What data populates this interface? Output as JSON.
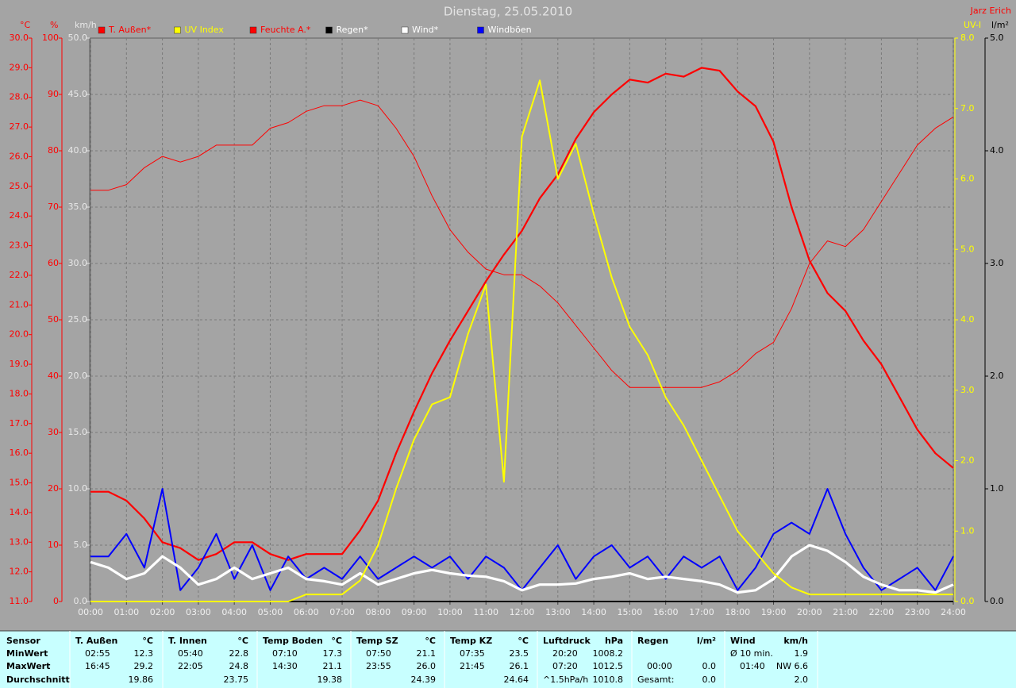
{
  "chart_data": {
    "type": "line",
    "title": "Dienstag, 25.05.2010",
    "author": "Jarz Erich",
    "grid": true,
    "x": [
      0,
      0.5,
      1,
      1.5,
      2,
      2.5,
      3,
      3.5,
      4,
      4.5,
      5,
      5.5,
      6,
      6.5,
      7,
      7.5,
      8,
      8.5,
      9,
      9.5,
      10,
      10.5,
      11,
      11.5,
      12,
      12.5,
      13,
      13.5,
      14,
      14.5,
      15,
      15.5,
      16,
      16.5,
      17,
      17.5,
      18,
      18.5,
      19,
      19.5,
      20,
      20.5,
      21,
      21.5,
      22,
      22.5,
      23,
      23.5,
      24
    ],
    "xlim": [
      0,
      24
    ],
    "xticks": [
      {
        "value": 0,
        "label": "00:00"
      },
      {
        "value": 1,
        "label": "01:00"
      },
      {
        "value": 2,
        "label": "02:00"
      },
      {
        "value": 3,
        "label": "03:00"
      },
      {
        "value": 4,
        "label": "04:00"
      },
      {
        "value": 5,
        "label": "05:00"
      },
      {
        "value": 6,
        "label": "06:00"
      },
      {
        "value": 7,
        "label": "07:00"
      },
      {
        "value": 8,
        "label": "08:00"
      },
      {
        "value": 9,
        "label": "09:00"
      },
      {
        "value": 10,
        "label": "10:00"
      },
      {
        "value": 11,
        "label": "11:00"
      },
      {
        "value": 12,
        "label": "12:00"
      },
      {
        "value": 13,
        "label": "13:00"
      },
      {
        "value": 14,
        "label": "14:00"
      },
      {
        "value": 15,
        "label": "15:00"
      },
      {
        "value": 16,
        "label": "16:00"
      },
      {
        "value": 17,
        "label": "17:00"
      },
      {
        "value": 18,
        "label": "18:00"
      },
      {
        "value": 19,
        "label": "19:00"
      },
      {
        "value": 20,
        "label": "20:00"
      },
      {
        "value": 21,
        "label": "21:00"
      },
      {
        "value": 22,
        "label": "22:00"
      },
      {
        "value": 23,
        "label": "23:00"
      },
      {
        "value": 24,
        "label": "24:00"
      }
    ],
    "axes": {
      "temp": {
        "label": "°C",
        "color": "#ff0000",
        "lim": [
          11,
          30
        ],
        "ticks": [
          {
            "value": 11,
            "label": "11.0"
          },
          {
            "value": 12,
            "label": "12.0"
          },
          {
            "value": 13,
            "label": "13.0"
          },
          {
            "value": 14,
            "label": "14.0"
          },
          {
            "value": 15,
            "label": "15.0"
          },
          {
            "value": 16,
            "label": "16.0"
          },
          {
            "value": 17,
            "label": "17.0"
          },
          {
            "value": 18,
            "label": "18.0"
          },
          {
            "value": 19,
            "label": "19.0"
          },
          {
            "value": 20,
            "label": "20.0"
          },
          {
            "value": 21,
            "label": "21.0"
          },
          {
            "value": 22,
            "label": "22.0"
          },
          {
            "value": 23,
            "label": "23.0"
          },
          {
            "value": 24,
            "label": "24.0"
          },
          {
            "value": 25,
            "label": "25.0"
          },
          {
            "value": 26,
            "label": "26.0"
          },
          {
            "value": 27,
            "label": "27.0"
          },
          {
            "value": 28,
            "label": "28.0"
          },
          {
            "value": 29,
            "label": "29.0"
          },
          {
            "value": 30,
            "label": "30.0"
          }
        ]
      },
      "hum": {
        "label": "%",
        "color": "#ff0000",
        "lim": [
          0,
          100
        ],
        "ticks": [
          0,
          10,
          20,
          30,
          40,
          50,
          60,
          70,
          80,
          90,
          100
        ]
      },
      "wind": {
        "label": "km/h",
        "color": "#e8e8e8",
        "lim": [
          0,
          50
        ],
        "ticks": [
          {
            "value": 0,
            "label": "0.0"
          },
          {
            "value": 5,
            "label": "5.0"
          },
          {
            "value": 10,
            "label": "10.0"
          },
          {
            "value": 15,
            "label": "15.0"
          },
          {
            "value": 20,
            "label": "20.0"
          },
          {
            "value": 25,
            "label": "25.0"
          },
          {
            "value": 30,
            "label": "30.0"
          },
          {
            "value": 35,
            "label": "35.0"
          },
          {
            "value": 40,
            "label": "40.0"
          },
          {
            "value": 45,
            "label": "45.0"
          },
          {
            "value": 50,
            "label": "50.0"
          }
        ]
      },
      "uv": {
        "label": "UV-I",
        "color": "#ffff00",
        "lim": [
          0,
          8
        ],
        "ticks": [
          {
            "value": 0,
            "label": "0.0"
          },
          {
            "value": 1,
            "label": "1.0"
          },
          {
            "value": 2,
            "label": "2.0"
          },
          {
            "value": 3,
            "label": "3.0"
          },
          {
            "value": 4,
            "label": "4.0"
          },
          {
            "value": 5,
            "label": "5.0"
          },
          {
            "value": 6,
            "label": "6.0"
          },
          {
            "value": 7,
            "label": "7.0"
          },
          {
            "value": 8,
            "label": "8.0"
          }
        ]
      },
      "rain": {
        "label": "l/m²",
        "color": "#000000",
        "lim": [
          0,
          5
        ],
        "ticks": [
          {
            "value": 0,
            "label": "0.0"
          },
          {
            "value": 1,
            "label": "1.0"
          },
          {
            "value": 2,
            "label": "2.0"
          },
          {
            "value": 3,
            "label": "3.0"
          },
          {
            "value": 4,
            "label": "4.0"
          },
          {
            "value": 5,
            "label": "5.0"
          }
        ]
      }
    },
    "series": [
      {
        "name": "T. Außen*",
        "color": "#ff0000",
        "axis": "temp",
        "values": [
          14.7,
          14.7,
          14.4,
          13.8,
          13.0,
          12.8,
          12.4,
          12.6,
          13.0,
          13.0,
          12.6,
          12.4,
          12.6,
          12.6,
          12.6,
          13.4,
          14.4,
          16.0,
          17.4,
          18.7,
          19.8,
          20.8,
          21.8,
          22.7,
          23.5,
          24.6,
          25.4,
          26.6,
          27.5,
          28.1,
          28.6,
          28.5,
          28.8,
          28.7,
          29.0,
          28.9,
          28.2,
          27.7,
          26.5,
          24.3,
          22.5,
          21.4,
          20.8,
          19.8,
          19.0,
          17.9,
          16.8,
          16.0,
          15.5
        ]
      },
      {
        "name": "UV Index",
        "color": "#ffff00",
        "axis": "uv",
        "values": [
          0,
          0,
          0,
          0,
          0,
          0,
          0,
          0,
          0,
          0,
          0,
          0,
          0.1,
          0.1,
          0.1,
          0.3,
          0.8,
          1.6,
          2.3,
          2.8,
          2.9,
          3.8,
          4.5,
          1.7,
          6.6,
          7.4,
          6.0,
          6.5,
          5.5,
          4.6,
          3.9,
          3.5,
          2.9,
          2.5,
          2.0,
          1.5,
          1.0,
          0.7,
          0.4,
          0.2,
          0.1,
          0.1,
          0.1,
          0.1,
          0.1,
          0.1,
          0.1,
          0.1,
          0.1
        ]
      },
      {
        "name": "Feuchte A.*",
        "color": "#ff0000",
        "axis": "hum",
        "values": [
          73,
          73,
          74,
          77,
          79,
          78,
          79,
          81,
          81,
          81,
          84,
          85,
          87,
          88,
          88,
          89,
          88,
          84,
          79,
          72,
          66,
          62,
          59,
          58,
          58,
          56,
          53,
          49,
          45,
          41,
          38,
          38,
          38,
          38,
          38,
          39,
          41,
          44,
          46,
          52,
          60,
          64,
          63,
          66,
          71,
          76,
          81,
          84,
          86
        ]
      },
      {
        "name": "Regen*",
        "color": "#000000",
        "axis": "rain",
        "values": [
          0,
          0,
          0,
          0,
          0,
          0,
          0,
          0,
          0,
          0,
          0,
          0,
          0,
          0,
          0,
          0,
          0,
          0,
          0,
          0,
          0,
          0,
          0,
          0,
          0,
          0,
          0,
          0,
          0,
          0,
          0,
          0,
          0,
          0,
          0,
          0,
          0,
          0,
          0,
          0,
          0,
          0,
          0,
          0,
          0,
          0,
          0,
          0,
          0
        ]
      },
      {
        "name": "Wind*",
        "color": "#ffffff",
        "axis": "wind",
        "values": [
          3.5,
          3,
          2,
          2.5,
          4,
          3,
          1.5,
          2,
          3,
          2,
          2.5,
          3,
          2,
          1.8,
          1.5,
          2.5,
          1.5,
          2,
          2.5,
          2.8,
          2.5,
          2.3,
          2.2,
          1.8,
          1,
          1.5,
          1.5,
          1.6,
          2,
          2.2,
          2.5,
          2,
          2.2,
          2,
          1.8,
          1.5,
          0.8,
          1,
          2,
          4,
          5,
          4.5,
          3.5,
          2.2,
          1.5,
          1,
          1,
          0.8,
          1.5
        ]
      },
      {
        "name": "Windböen",
        "color": "#0000ff",
        "axis": "wind",
        "values": [
          4,
          4,
          6,
          3,
          10,
          1,
          3,
          6,
          2,
          5,
          1,
          4,
          2,
          3,
          2,
          4,
          2,
          3,
          4,
          3,
          4,
          2,
          4,
          3,
          1,
          3,
          5,
          2,
          4,
          5,
          3,
          4,
          2,
          4,
          3,
          4,
          1,
          3,
          6,
          7,
          6,
          10,
          6,
          3,
          1,
          2,
          3,
          1,
          4
        ]
      }
    ]
  },
  "table": {
    "row_labels": [
      "Sensor",
      "MinWert",
      "MaxWert",
      "Durchschnitt"
    ],
    "groups": [
      {
        "name": "T. Außen",
        "unit": "°C",
        "rows": [
          [
            "02:55",
            "12.3"
          ],
          [
            "16:45",
            "29.2"
          ],
          [
            null,
            "19.86"
          ]
        ]
      },
      {
        "name": "T. Innen",
        "unit": "°C",
        "rows": [
          [
            "05:40",
            "22.8"
          ],
          [
            "22:05",
            "24.8"
          ],
          [
            null,
            "23.75"
          ]
        ]
      },
      {
        "name": "Temp Boden",
        "unit": "°C",
        "rows": [
          [
            "07:10",
            "17.3"
          ],
          [
            "14:30",
            "21.1"
          ],
          [
            null,
            "19.38"
          ]
        ]
      },
      {
        "name": "Temp SZ",
        "unit": "°C",
        "rows": [
          [
            "07:50",
            "21.1"
          ],
          [
            "23:55",
            "26.0"
          ],
          [
            null,
            "24.39"
          ]
        ]
      },
      {
        "name": "Temp KZ",
        "unit": "°C",
        "rows": [
          [
            "07:35",
            "23.5"
          ],
          [
            "21:45",
            "26.1"
          ],
          [
            null,
            "24.64"
          ]
        ]
      },
      {
        "name": "Luftdruck",
        "unit": "hPa",
        "rows": [
          [
            "20:20",
            "1008.2"
          ],
          [
            "07:20",
            "1012.5"
          ],
          [
            "^1.5hPa/h",
            "1010.8"
          ]
        ]
      },
      {
        "name": "Regen",
        "unit": "l/m²",
        "rows": [
          [
            null,
            null
          ],
          [
            "00:00",
            "0.0"
          ],
          [
            "Gesamt:",
            "0.0"
          ]
        ]
      },
      {
        "name": "Wind",
        "unit": "km/h",
        "rows": [
          [
            "Ø 10 min.",
            "1.9"
          ],
          [
            "01:40",
            "NW 6.6"
          ],
          [
            null,
            "2.0"
          ]
        ]
      }
    ]
  }
}
